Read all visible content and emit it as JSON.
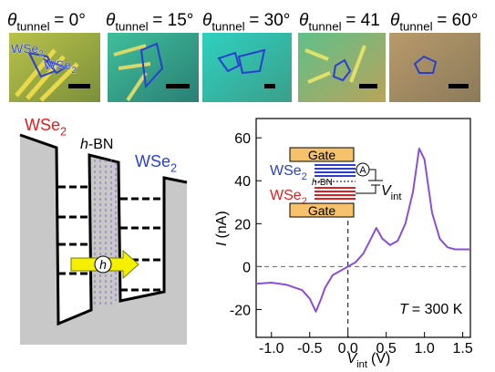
{
  "photos": [
    {
      "label": {
        "symbol": "θ",
        "sub": "tunnel",
        "value": "= 0°"
      },
      "flakes": [
        {
          "text": "WSe",
          "sub": "2"
        },
        {
          "text": "WSe",
          "sub": "2"
        }
      ]
    },
    {
      "label": {
        "symbol": "θ",
        "sub": "tunnel",
        "value": "= 15°"
      }
    },
    {
      "label": {
        "symbol": "θ",
        "sub": "tunnel",
        "value": "= 30°"
      }
    },
    {
      "label": {
        "symbol": "θ",
        "sub": "tunnel",
        "value": "= 41"
      }
    },
    {
      "label": {
        "symbol": "θ",
        "sub": "tunnel",
        "value": "= 60°"
      }
    }
  ],
  "schematic": {
    "left": {
      "text": "WSe",
      "sub": "2"
    },
    "barrier": {
      "italic": "h",
      "text": "-BN"
    },
    "right": {
      "text": "WSe",
      "sub": "2"
    },
    "carrier": "h"
  },
  "chart_data": {
    "type": "line",
    "x_label": {
      "symbol": "V",
      "sub": "int",
      "unit": "(V)"
    },
    "y_label": {
      "symbol": "I",
      "unit": "(nA)"
    },
    "annotation": {
      "symbol": "T",
      "text": "= 300 K"
    },
    "inset": {
      "gate_top": "Gate",
      "top_layer": {
        "text": "WSe",
        "sub": "2"
      },
      "ammeter": "A",
      "barrier": {
        "italic": "h",
        "text": "-BN"
      },
      "bottom_layer": {
        "text": "WSe",
        "sub": "2"
      },
      "bias": {
        "symbol": "V",
        "sub": "int"
      },
      "gate_bottom": "Gate"
    },
    "x": [
      -1.2,
      -1.0,
      -0.8,
      -0.6,
      -0.5,
      -0.42,
      -0.35,
      -0.3,
      -0.2,
      -0.1,
      0.0,
      0.1,
      0.2,
      0.3,
      0.37,
      0.45,
      0.55,
      0.65,
      0.75,
      0.85,
      0.93,
      1.0,
      1.1,
      1.2,
      1.3,
      1.4,
      1.6
    ],
    "series": [
      {
        "color": "#8a4fd6",
        "values": [
          -8,
          -7.5,
          -8.5,
          -11,
          -15,
          -21,
          -15,
          -10,
          -4,
          -2,
          0,
          2,
          6,
          13,
          18,
          13,
          10,
          12,
          20,
          35,
          55,
          50,
          25,
          13,
          9,
          8,
          8
        ]
      }
    ],
    "reference_lines": {
      "x": 0,
      "y": 0
    },
    "xlim": [
      -1.2,
      1.6
    ],
    "ylim": [
      -33,
      69
    ],
    "xticks": [
      {
        "value": -1.0,
        "label": "-1.0"
      },
      -0.5,
      {
        "value": 0.0,
        "label": "0.0"
      },
      0.5,
      {
        "value": 1.0,
        "label": "1.0"
      },
      1.5
    ],
    "yticks": [
      -20,
      0,
      20,
      40,
      60
    ]
  }
}
